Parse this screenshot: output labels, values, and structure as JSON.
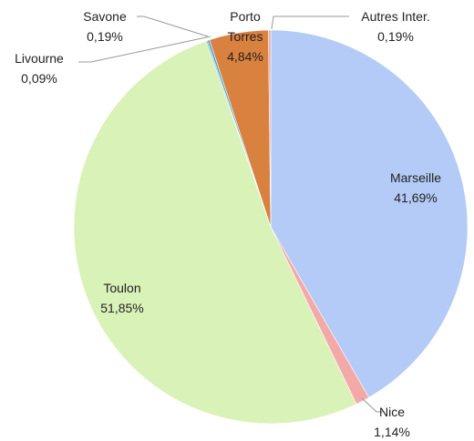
{
  "chart_data": {
    "type": "pie",
    "categories": [
      "Marseille",
      "Nice",
      "Toulon",
      "Livourne",
      "Savone",
      "Porto Torres",
      "Autres Inter."
    ],
    "values": [
      41.69,
      1.14,
      51.85,
      0.09,
      0.19,
      4.84,
      0.19
    ],
    "value_labels": [
      "41,69%",
      "1,14%",
      "51,85%",
      "0,09%",
      "0,19%",
      "4,84%",
      "0,19%"
    ],
    "colors": [
      "#b3cbf6",
      "#f4a9a9",
      "#d9f2b8",
      "#4f81bd",
      "#4bacc6",
      "#d9813f",
      "#e8a7a7"
    ]
  }
}
